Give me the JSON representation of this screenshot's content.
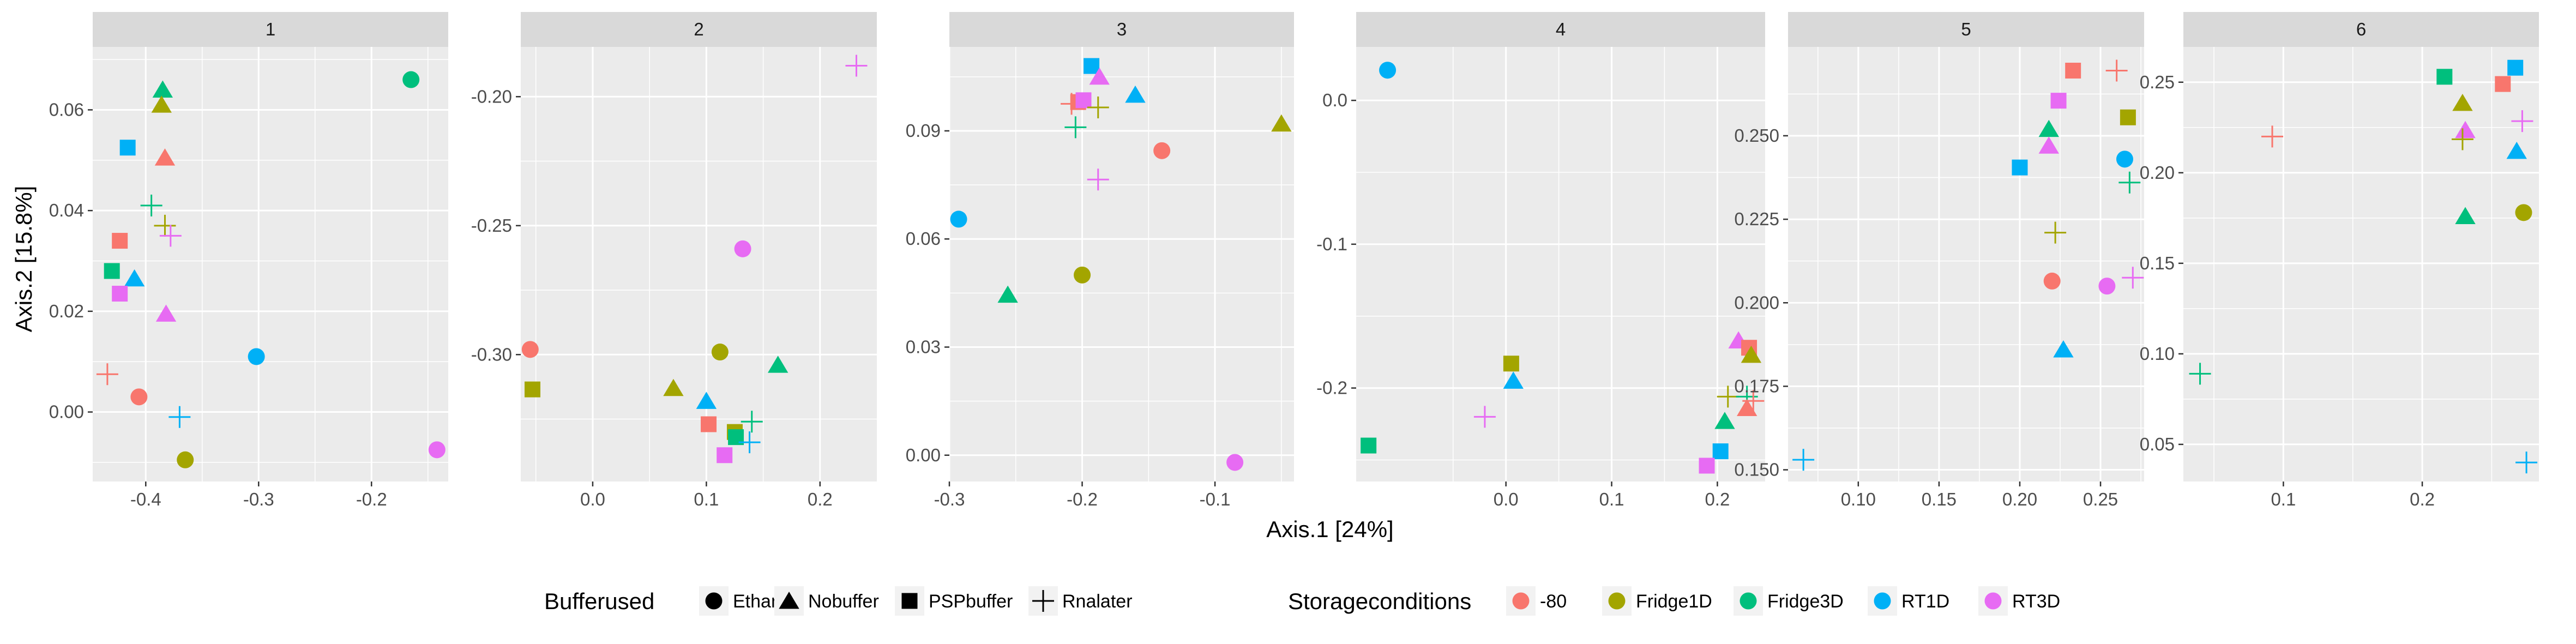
{
  "chart_data": {
    "type": "scatter",
    "xlabel": "Axis.1   [24%]",
    "ylabel": "Axis.2   [15.8%]",
    "grid": true,
    "legend_position": "bottom",
    "colors": {
      "-80": "#F8766D",
      "Fridge1D": "#A3A500",
      "Fridge3D": "#00BF7D",
      "RT1D": "#00B0F6",
      "RT3D": "#E76BF3"
    },
    "legends": {
      "shape": {
        "title": "Bufferused",
        "items": [
          {
            "label": "Ethanol",
            "shape": "circle"
          },
          {
            "label": "Nobuffer",
            "shape": "triangle"
          },
          {
            "label": "PSPbuffer",
            "shape": "square"
          },
          {
            "label": "Rnalater",
            "shape": "plus"
          }
        ]
      },
      "color": {
        "title": "Storageconditions",
        "items": [
          "-80",
          "Fridge1D",
          "Fridge3D",
          "RT1D",
          "RT3D"
        ]
      }
    },
    "panels": [
      {
        "strip": "1",
        "xlim": [
          -0.447,
          -0.132
        ],
        "ylim": [
          -0.0138,
          0.0725
        ],
        "xticks": [
          -0.4,
          -0.3,
          -0.2
        ],
        "xtick_labels": [
          "-0.4",
          "-0.3",
          "-0.2"
        ],
        "yticks": [
          0.0,
          0.02,
          0.04,
          0.06
        ],
        "ytick_labels": [
          "0.00",
          "0.02",
          "0.04",
          "0.06"
        ],
        "points": [
          {
            "x": -0.385,
            "y": 0.064,
            "shape": "triangle",
            "color": "Fridge3D"
          },
          {
            "x": -0.386,
            "y": 0.061,
            "shape": "triangle",
            "color": "Fridge1D"
          },
          {
            "x": -0.383,
            "y": 0.0505,
            "shape": "triangle",
            "color": "-80"
          },
          {
            "x": -0.165,
            "y": 0.066,
            "shape": "circle",
            "color": "Fridge3D"
          },
          {
            "x": -0.416,
            "y": 0.0525,
            "shape": "square",
            "color": "RT1D"
          },
          {
            "x": -0.395,
            "y": 0.041,
            "shape": "plus",
            "color": "Fridge3D"
          },
          {
            "x": -0.383,
            "y": 0.037,
            "shape": "plus",
            "color": "Fridge1D"
          },
          {
            "x": -0.378,
            "y": 0.035,
            "shape": "plus",
            "color": "RT3D"
          },
          {
            "x": -0.423,
            "y": 0.034,
            "shape": "square",
            "color": "-80"
          },
          {
            "x": -0.43,
            "y": 0.028,
            "shape": "square",
            "color": "Fridge3D"
          },
          {
            "x": -0.41,
            "y": 0.0265,
            "shape": "triangle",
            "color": "RT1D"
          },
          {
            "x": -0.423,
            "y": 0.0235,
            "shape": "square",
            "color": "RT3D"
          },
          {
            "x": -0.382,
            "y": 0.0195,
            "shape": "triangle",
            "color": "RT3D"
          },
          {
            "x": -0.302,
            "y": 0.011,
            "shape": "circle",
            "color": "RT1D"
          },
          {
            "x": -0.434,
            "y": 0.0075,
            "shape": "plus",
            "color": "-80"
          },
          {
            "x": -0.406,
            "y": 0.003,
            "shape": "circle",
            "color": "-80"
          },
          {
            "x": -0.37,
            "y": -0.001,
            "shape": "plus",
            "color": "RT1D"
          },
          {
            "x": -0.365,
            "y": -0.0095,
            "shape": "circle",
            "color": "Fridge1D"
          },
          {
            "x": -0.142,
            "y": -0.0075,
            "shape": "circle",
            "color": "RT3D"
          }
        ]
      },
      {
        "strip": "2",
        "xlim": [
          -0.0633,
          0.25
        ],
        "ylim": [
          -0.3492,
          -0.1807
        ],
        "xticks": [
          0.0,
          0.1,
          0.2
        ],
        "xtick_labels": [
          "0.0",
          "0.1",
          "0.2"
        ],
        "yticks": [
          -0.3,
          -0.25,
          -0.2
        ],
        "ytick_labels": [
          "-0.30",
          "-0.25",
          "-0.20"
        ],
        "points": [
          {
            "x": 0.232,
            "y": -0.188,
            "shape": "plus",
            "color": "RT3D"
          },
          {
            "x": 0.132,
            "y": -0.259,
            "shape": "circle",
            "color": "RT3D"
          },
          {
            "x": -0.055,
            "y": -0.298,
            "shape": "circle",
            "color": "-80"
          },
          {
            "x": 0.112,
            "y": -0.299,
            "shape": "circle",
            "color": "Fridge1D"
          },
          {
            "x": 0.163,
            "y": -0.304,
            "shape": "triangle",
            "color": "Fridge3D"
          },
          {
            "x": -0.053,
            "y": -0.3135,
            "shape": "square",
            "color": "Fridge1D"
          },
          {
            "x": 0.071,
            "y": -0.313,
            "shape": "triangle",
            "color": "Fridge1D"
          },
          {
            "x": 0.1,
            "y": -0.318,
            "shape": "triangle",
            "color": "RT1D"
          },
          {
            "x": 0.102,
            "y": -0.327,
            "shape": "square",
            "color": "-80"
          },
          {
            "x": 0.14,
            "y": -0.326,
            "shape": "plus",
            "color": "Fridge3D"
          },
          {
            "x": 0.125,
            "y": -0.33,
            "shape": "square",
            "color": "Fridge1D"
          },
          {
            "x": 0.126,
            "y": -0.332,
            "shape": "square",
            "color": "Fridge3D"
          },
          {
            "x": 0.138,
            "y": -0.334,
            "shape": "plus",
            "color": "RT1D"
          },
          {
            "x": 0.116,
            "y": -0.339,
            "shape": "square",
            "color": "RT3D"
          }
        ]
      },
      {
        "strip": "3",
        "xlim": [
          -0.3,
          -0.0405
        ],
        "ylim": [
          -0.0073,
          0.1133
        ],
        "xticks": [
          -0.3,
          -0.2,
          -0.1
        ],
        "xtick_labels": [
          "-0.3",
          "-0.2",
          "-0.1"
        ],
        "yticks": [
          0.0,
          0.03,
          0.06,
          0.09
        ],
        "ytick_labels": [
          "0.00",
          "0.03",
          "0.06",
          "0.09"
        ],
        "points": [
          {
            "x": -0.193,
            "y": 0.108,
            "shape": "square",
            "color": "RT1D"
          },
          {
            "x": -0.187,
            "y": 0.105,
            "shape": "triangle",
            "color": "RT3D"
          },
          {
            "x": -0.16,
            "y": 0.1,
            "shape": "triangle",
            "color": "RT1D"
          },
          {
            "x": -0.208,
            "y": 0.0975,
            "shape": "plus",
            "color": "-80"
          },
          {
            "x": -0.203,
            "y": 0.098,
            "shape": "square",
            "color": "-80"
          },
          {
            "x": -0.199,
            "y": 0.0985,
            "shape": "square",
            "color": "RT3D"
          },
          {
            "x": -0.188,
            "y": 0.0965,
            "shape": "plus",
            "color": "Fridge1D"
          },
          {
            "x": -0.05,
            "y": 0.092,
            "shape": "triangle",
            "color": "Fridge1D"
          },
          {
            "x": -0.205,
            "y": 0.091,
            "shape": "plus",
            "color": "Fridge3D"
          },
          {
            "x": -0.14,
            "y": 0.0845,
            "shape": "circle",
            "color": "-80"
          },
          {
            "x": -0.188,
            "y": 0.0765,
            "shape": "plus",
            "color": "RT3D"
          },
          {
            "x": -0.293,
            "y": 0.0655,
            "shape": "circle",
            "color": "RT1D"
          },
          {
            "x": -0.2,
            "y": 0.05,
            "shape": "circle",
            "color": "Fridge1D"
          },
          {
            "x": -0.256,
            "y": 0.0445,
            "shape": "triangle",
            "color": "Fridge3D"
          },
          {
            "x": -0.085,
            "y": -0.002,
            "shape": "circle",
            "color": "RT3D"
          }
        ]
      },
      {
        "strip": "4",
        "xlim": [
          -0.1417,
          0.2452
        ],
        "ylim": [
          -0.265,
          0.0372
        ],
        "xticks": [
          0.0,
          0.1,
          0.2
        ],
        "xtick_labels": [
          "0.0",
          "0.1",
          "0.2"
        ],
        "yticks": [
          -0.2,
          -0.1,
          0.0
        ],
        "ytick_labels": [
          "-0.2",
          "-0.1",
          "0.0"
        ],
        "points": [
          {
            "x": -0.112,
            "y": 0.021,
            "shape": "circle",
            "color": "RT1D"
          },
          {
            "x": 0.005,
            "y": -0.183,
            "shape": "square",
            "color": "Fridge1D"
          },
          {
            "x": 0.007,
            "y": -0.195,
            "shape": "triangle",
            "color": "RT1D"
          },
          {
            "x": 0.22,
            "y": -0.167,
            "shape": "triangle",
            "color": "RT3D"
          },
          {
            "x": 0.23,
            "y": -0.172,
            "shape": "square",
            "color": "-80"
          },
          {
            "x": 0.232,
            "y": -0.177,
            "shape": "triangle",
            "color": "Fridge1D"
          },
          {
            "x": 0.21,
            "y": -0.206,
            "shape": "plus",
            "color": "Fridge1D"
          },
          {
            "x": 0.228,
            "y": -0.206,
            "shape": "plus",
            "color": "Fridge3D"
          },
          {
            "x": -0.02,
            "y": -0.22,
            "shape": "plus",
            "color": "RT3D"
          },
          {
            "x": 0.228,
            "y": -0.214,
            "shape": "triangle",
            "color": "-80"
          },
          {
            "x": 0.207,
            "y": -0.223,
            "shape": "triangle",
            "color": "Fridge3D"
          },
          {
            "x": 0.234,
            "y": -0.209,
            "shape": "plus",
            "color": "-80"
          },
          {
            "x": -0.13,
            "y": -0.24,
            "shape": "square",
            "color": "Fridge3D"
          },
          {
            "x": 0.203,
            "y": -0.244,
            "shape": "square",
            "color": "RT1D"
          },
          {
            "x": 0.19,
            "y": -0.254,
            "shape": "square",
            "color": "RT3D"
          }
        ]
      },
      {
        "strip": "5",
        "xlim": [
          0.0565,
          0.277
        ],
        "ylim": [
          0.1465,
          0.2766
        ],
        "xticks": [
          0.1,
          0.15,
          0.2,
          0.25
        ],
        "xtick_labels": [
          "0.10",
          "0.15",
          "0.20",
          "0.25"
        ],
        "yticks": [
          0.15,
          0.175,
          0.2,
          0.225,
          0.25
        ],
        "ytick_labels": [
          "0.150",
          "0.175",
          "0.200",
          "0.225",
          "0.250"
        ],
        "points": [
          {
            "x": 0.233,
            "y": 0.2695,
            "shape": "square",
            "color": "-80"
          },
          {
            "x": 0.26,
            "y": 0.2695,
            "shape": "plus",
            "color": "-80"
          },
          {
            "x": 0.224,
            "y": 0.2605,
            "shape": "square",
            "color": "RT3D"
          },
          {
            "x": 0.267,
            "y": 0.2555,
            "shape": "square",
            "color": "Fridge1D"
          },
          {
            "x": 0.218,
            "y": 0.252,
            "shape": "triangle",
            "color": "Fridge3D"
          },
          {
            "x": 0.218,
            "y": 0.247,
            "shape": "triangle",
            "color": "RT3D"
          },
          {
            "x": 0.265,
            "y": 0.243,
            "shape": "circle",
            "color": "RT1D"
          },
          {
            "x": 0.2,
            "y": 0.2405,
            "shape": "square",
            "color": "RT1D"
          },
          {
            "x": 0.268,
            "y": 0.236,
            "shape": "plus",
            "color": "Fridge3D"
          },
          {
            "x": 0.222,
            "y": 0.221,
            "shape": "plus",
            "color": "Fridge1D"
          },
          {
            "x": 0.27,
            "y": 0.2075,
            "shape": "plus",
            "color": "RT3D"
          },
          {
            "x": 0.22,
            "y": 0.2065,
            "shape": "circle",
            "color": "-80"
          },
          {
            "x": 0.254,
            "y": 0.205,
            "shape": "circle",
            "color": "RT3D"
          },
          {
            "x": 0.227,
            "y": 0.186,
            "shape": "triangle",
            "color": "RT1D"
          },
          {
            "x": 0.066,
            "y": 0.153,
            "shape": "plus",
            "color": "RT1D"
          }
        ]
      },
      {
        "strip": "6",
        "xlim": [
          0.028,
          0.284
        ],
        "ylim": [
          0.0295,
          0.2695
        ],
        "xticks": [
          0.1,
          0.2
        ],
        "xtick_labels": [
          "0.1",
          "0.2"
        ],
        "yticks": [
          0.05,
          0.1,
          0.15,
          0.2,
          0.25
        ],
        "ytick_labels": [
          "0.05",
          "0.10",
          "0.15",
          "0.20",
          "0.25"
        ],
        "points": [
          {
            "x": 0.267,
            "y": 0.258,
            "shape": "square",
            "color": "RT1D"
          },
          {
            "x": 0.216,
            "y": 0.253,
            "shape": "square",
            "color": "Fridge3D"
          },
          {
            "x": 0.258,
            "y": 0.249,
            "shape": "square",
            "color": "-80"
          },
          {
            "x": 0.229,
            "y": 0.2385,
            "shape": "triangle",
            "color": "Fridge1D"
          },
          {
            "x": 0.272,
            "y": 0.2285,
            "shape": "plus",
            "color": "RT3D"
          },
          {
            "x": 0.231,
            "y": 0.2235,
            "shape": "triangle",
            "color": "RT3D"
          },
          {
            "x": 0.092,
            "y": 0.22,
            "shape": "plus",
            "color": "-80"
          },
          {
            "x": 0.229,
            "y": 0.2185,
            "shape": "plus",
            "color": "Fridge1D"
          },
          {
            "x": 0.268,
            "y": 0.212,
            "shape": "triangle",
            "color": "RT1D"
          },
          {
            "x": 0.273,
            "y": 0.178,
            "shape": "circle",
            "color": "Fridge1D"
          },
          {
            "x": 0.231,
            "y": 0.176,
            "shape": "triangle",
            "color": "Fridge3D"
          },
          {
            "x": 0.04,
            "y": 0.089,
            "shape": "plus",
            "color": "Fridge3D"
          },
          {
            "x": 0.275,
            "y": 0.04,
            "shape": "plus",
            "color": "RT1D"
          }
        ]
      }
    ]
  }
}
